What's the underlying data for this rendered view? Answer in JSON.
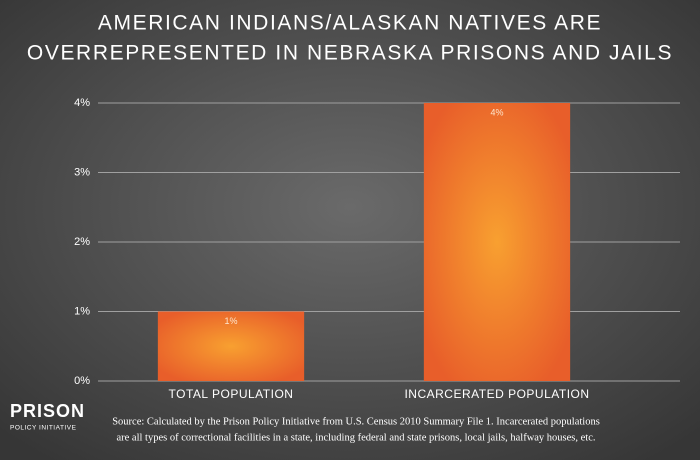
{
  "chart_data": {
    "type": "bar",
    "title": [
      "AMERICAN INDIANS/ALASKAN NATIVES ARE",
      "OVERREPRESENTED IN NEBRASKA PRISONS AND JAILS"
    ],
    "categories": [
      "TOTAL POPULATION",
      "INCARCERATED POPULATION"
    ],
    "values": [
      1,
      4
    ],
    "value_labels": [
      "1%",
      "4%"
    ],
    "color": "#ee7a2c",
    "ylim": [
      0,
      4
    ],
    "yticks": [
      {
        "value": 0,
        "label": "0%"
      },
      {
        "value": 1,
        "label": "1%"
      },
      {
        "value": 2,
        "label": "2%"
      },
      {
        "value": 3,
        "label": "3%"
      },
      {
        "value": 4,
        "label": "4%"
      }
    ],
    "grid": true,
    "source": [
      "Source: Calculated by the Prison Policy Initiative from U.S. Census 2010 Summary File 1. Incarcerated populations",
      "are all types of correctional facilities in a state, including federal and state prisons, local jails, halfway houses, etc."
    ],
    "logo": [
      "PRISON",
      "POLICY INITIATIVE"
    ]
  }
}
